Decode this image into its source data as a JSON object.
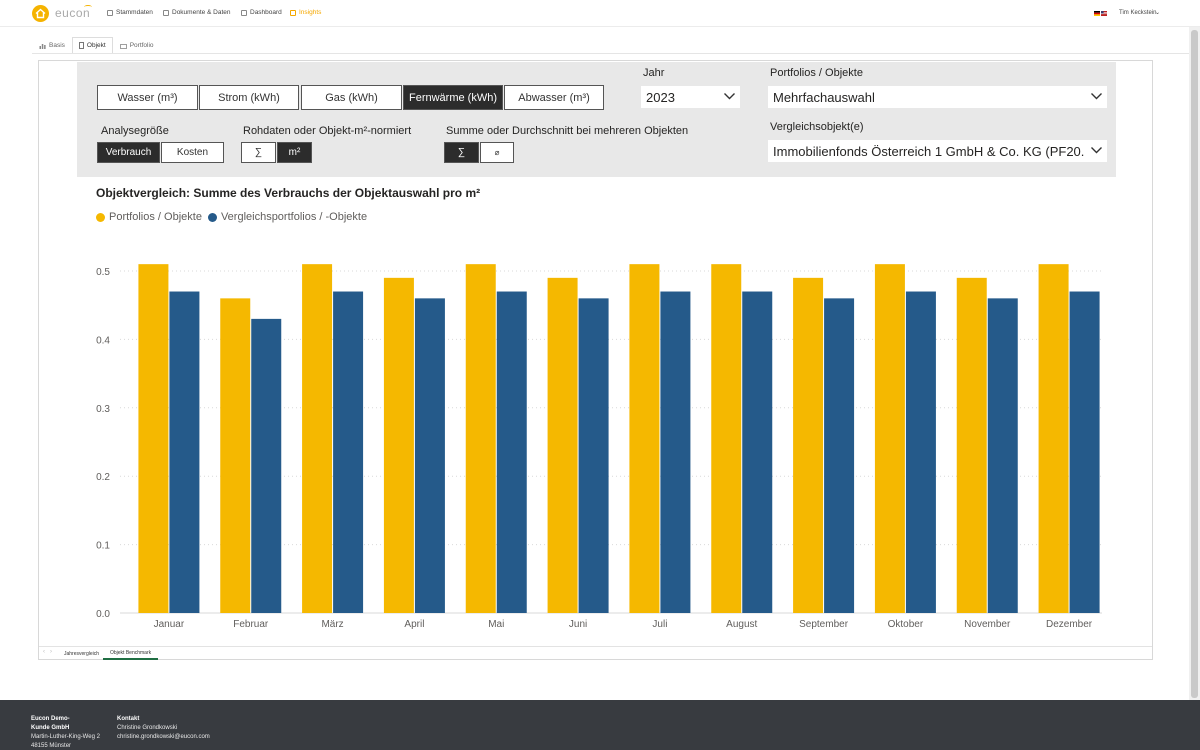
{
  "nav": {
    "logo_text": "eucon",
    "items": [
      {
        "label": "Stammdaten",
        "icon": "users-icon"
      },
      {
        "label": "Dokumente & Daten",
        "icon": "document-icon"
      },
      {
        "label": "Dashboard",
        "icon": "dashboard-icon"
      },
      {
        "label": "Insights",
        "icon": "chart-icon"
      }
    ],
    "active_item": "Insights",
    "user_name": "Tim Keckstein"
  },
  "subtabs": [
    {
      "label": "Basis",
      "icon": "bar-chart-icon"
    },
    {
      "label": "Objekt",
      "icon": "building-icon"
    },
    {
      "label": "Portfolio",
      "icon": "portfolio-icon"
    }
  ],
  "active_subtab": "Objekt",
  "media": {
    "options": [
      "Wasser (m³)",
      "Strom (kWh)",
      "Gas (kWh)",
      "Fernwärme (kWh)",
      "Abwasser (m³)"
    ],
    "selected": "Fernwärme (kWh)"
  },
  "filters": {
    "jahr_label": "Jahr",
    "jahr_value": "2023",
    "portfolios_label": "Portfolios / Objekte",
    "portfolios_value": "Mehrfachauswahl",
    "vergleich_label": "Vergleichsobjekt(e)",
    "vergleich_value": "Immobilienfonds Österreich 1 GmbH & Co. KG (PF20...",
    "analyse_label": "Analysegröße",
    "analyse_options": [
      "Verbrauch",
      "Kosten"
    ],
    "analyse_selected": "Verbrauch",
    "norm_label": "Rohdaten oder Objekt-m²-normiert",
    "norm_options": [
      "∑",
      "m²"
    ],
    "norm_selected": "m²",
    "agg_label": "Summe oder Durchschnitt bei mehreren Objekten",
    "agg_options": [
      "∑",
      "⌀"
    ],
    "agg_selected": "∑"
  },
  "chart_title": "Objektvergleich: Summe des Verbrauchs der Objektauswahl pro m²",
  "colors": {
    "portfolio": "#f5b800",
    "vergleich": "#255a8a",
    "grid": "#d9d9d9",
    "accent": "#f5a800"
  },
  "chart_data": {
    "type": "bar",
    "title": "Objektvergleich: Summe des Verbrauchs der Objektauswahl pro m²",
    "categories": [
      "Januar",
      "Februar",
      "März",
      "April",
      "Mai",
      "Juni",
      "Juli",
      "August",
      "September",
      "Oktober",
      "November",
      "Dezember"
    ],
    "series": [
      {
        "name": "Portfolios / Objekte",
        "values": [
          0.51,
          0.46,
          0.51,
          0.49,
          0.51,
          0.49,
          0.51,
          0.51,
          0.49,
          0.51,
          0.49,
          0.51
        ]
      },
      {
        "name": "Vergleichsportfolios / -Objekte",
        "values": [
          0.47,
          0.43,
          0.47,
          0.46,
          0.47,
          0.46,
          0.47,
          0.47,
          0.46,
          0.47,
          0.46,
          0.47
        ]
      }
    ],
    "yticks": [
      "0.0",
      "0.1",
      "0.2",
      "0.3",
      "0.4",
      "0.5"
    ],
    "ylim": [
      0,
      0.55
    ],
    "legend": "top-left",
    "grid": true
  },
  "page_tabs": [
    "Jahresvergleich",
    "Objekt Benchmark"
  ],
  "active_page_tab": "Objekt Benchmark",
  "footer": {
    "company": [
      "Eucon Demo-",
      "Kunde GmbH",
      "Martin-Luther-King-Weg 2",
      "48155 Münster"
    ],
    "contact_title": "Kontakt",
    "contact_name": "Christine Grondkowski",
    "contact_email": "christine.grondkowski@eucon.com"
  }
}
